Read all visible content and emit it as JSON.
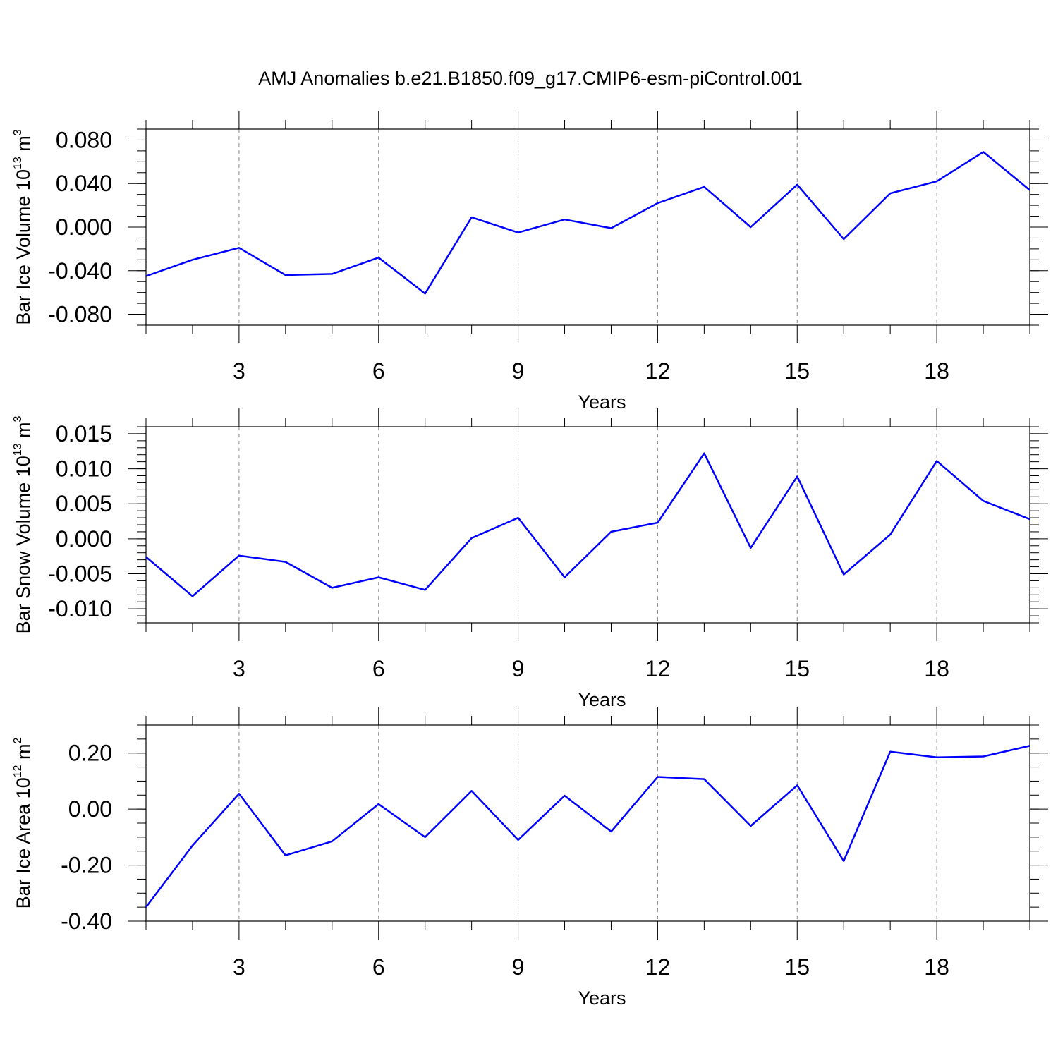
{
  "title": "AMJ Anomalies b.e21.B1850.f09_g17.CMIP6-esm-piControl.001",
  "colors": {
    "series": "#0000ff",
    "grid": "#888888",
    "axis": "#000000"
  },
  "chart_data": [
    {
      "type": "line",
      "ylabel_main": "Bar Ice Volume 10",
      "ylabel_exp": "13",
      "ylabel_unit": " m",
      "ylabel_unit_exp": "3",
      "xlabel": "Years",
      "xlim": [
        1,
        20
      ],
      "ylim": [
        -0.09,
        0.09
      ],
      "yticks": [
        -0.08,
        -0.04,
        0.0,
        0.04,
        0.08
      ],
      "ytick_labels": [
        "-0.080",
        "-0.040",
        "0.000",
        "0.040",
        "0.080"
      ],
      "yminor_step": 0.01,
      "xticks": [
        3,
        6,
        9,
        12,
        15,
        18
      ],
      "xtick_labels": [
        "3",
        "6",
        "9",
        "12",
        "15",
        "18"
      ],
      "grid": "x-dashed",
      "x": [
        1,
        2,
        3,
        4,
        5,
        6,
        7,
        8,
        9,
        10,
        11,
        12,
        13,
        14,
        15,
        16,
        17,
        18,
        19,
        20
      ],
      "values": [
        -0.045,
        -0.03,
        -0.019,
        -0.044,
        -0.043,
        -0.028,
        -0.061,
        0.009,
        -0.005,
        0.007,
        -0.001,
        0.022,
        0.037,
        0.0,
        0.039,
        -0.011,
        0.031,
        0.042,
        0.069,
        0.034
      ]
    },
    {
      "type": "line",
      "ylabel_main": "Bar Snow Volume 10",
      "ylabel_exp": "13",
      "ylabel_unit": " m",
      "ylabel_unit_exp": "3",
      "xlabel": "Years",
      "xlim": [
        1,
        20
      ],
      "ylim": [
        -0.012,
        0.016
      ],
      "yticks": [
        -0.01,
        -0.005,
        0.0,
        0.005,
        0.01,
        0.015
      ],
      "ytick_labels": [
        "-0.010",
        "-0.005",
        "0.000",
        "0.005",
        "0.010",
        "0.015"
      ],
      "yminor_step": 0.001,
      "xticks": [
        3,
        6,
        9,
        12,
        15,
        18
      ],
      "xtick_labels": [
        "3",
        "6",
        "9",
        "12",
        "15",
        "18"
      ],
      "grid": "x-dashed",
      "x": [
        1,
        2,
        3,
        4,
        5,
        6,
        7,
        8,
        9,
        10,
        11,
        12,
        13,
        14,
        15,
        16,
        17,
        18,
        19,
        20
      ],
      "values": [
        -0.0026,
        -0.0082,
        -0.0024,
        -0.0033,
        -0.007,
        -0.0055,
        -0.0073,
        0.0001,
        0.003,
        -0.0055,
        0.001,
        0.0023,
        0.0122,
        -0.0013,
        0.0089,
        -0.0051,
        0.0006,
        0.0111,
        0.0054,
        0.0028
      ]
    },
    {
      "type": "line",
      "ylabel_main": "Bar Ice Area 10",
      "ylabel_exp": "12",
      "ylabel_unit": " m",
      "ylabel_unit_exp": "2",
      "xlabel": "Years",
      "xlim": [
        1,
        20
      ],
      "ylim": [
        -0.4,
        0.3
      ],
      "yticks": [
        -0.4,
        -0.2,
        0.0,
        0.2
      ],
      "ytick_labels": [
        "-0.40",
        "-0.20",
        "0.00",
        "0.20"
      ],
      "yminor_step": 0.05,
      "xticks": [
        3,
        6,
        9,
        12,
        15,
        18
      ],
      "xtick_labels": [
        "3",
        "6",
        "9",
        "12",
        "15",
        "18"
      ],
      "grid": "x-dashed",
      "x": [
        1,
        2,
        3,
        4,
        5,
        6,
        7,
        8,
        9,
        10,
        11,
        12,
        13,
        14,
        15,
        16,
        17,
        18,
        19,
        20
      ],
      "values": [
        -0.35,
        -0.13,
        0.055,
        -0.165,
        -0.115,
        0.018,
        -0.1,
        0.065,
        -0.11,
        0.048,
        -0.08,
        0.115,
        0.107,
        -0.06,
        0.085,
        -0.185,
        0.205,
        0.185,
        0.188,
        0.226
      ]
    }
  ]
}
